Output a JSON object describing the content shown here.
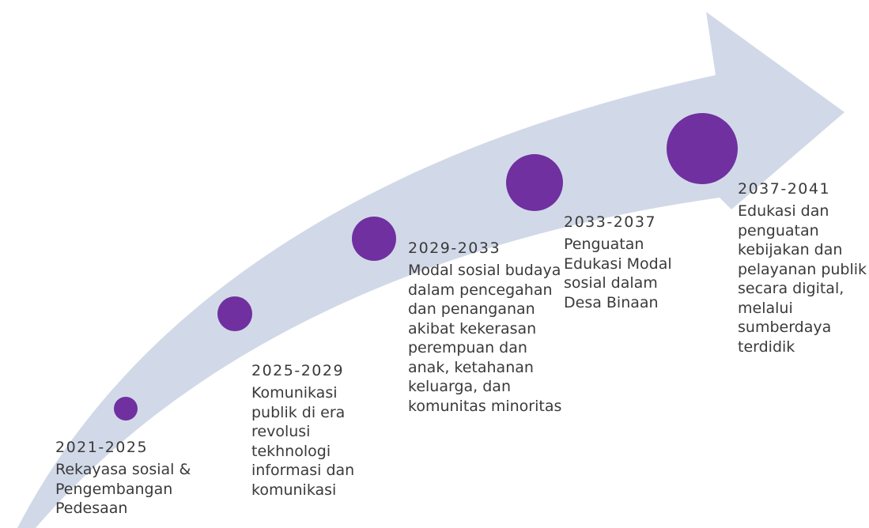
{
  "milestones": [
    {
      "period": "2021-2025",
      "description": "Rekayasa sosial & Pengembangan Pedesaan"
    },
    {
      "period": "2025-2029",
      "description": "Komunikasi publik di era revolusi tekhnologi informasi dan komunikasi"
    },
    {
      "period": "2029-2033",
      "description": "Modal sosial budaya dalam pencegahan dan penanganan akibat kekerasan perempuan dan anak, ketahanan keluarga, dan komunitas minoritas"
    },
    {
      "period": "2033-2037",
      "description": "Penguatan Edukasi Modal sosial dalam Desa Binaan"
    },
    {
      "period": "2037-2041",
      "description": "Edukasi dan penguatan kebijakan dan pelayanan publik secara digital, melalui sumberdaya terdidik"
    }
  ]
}
